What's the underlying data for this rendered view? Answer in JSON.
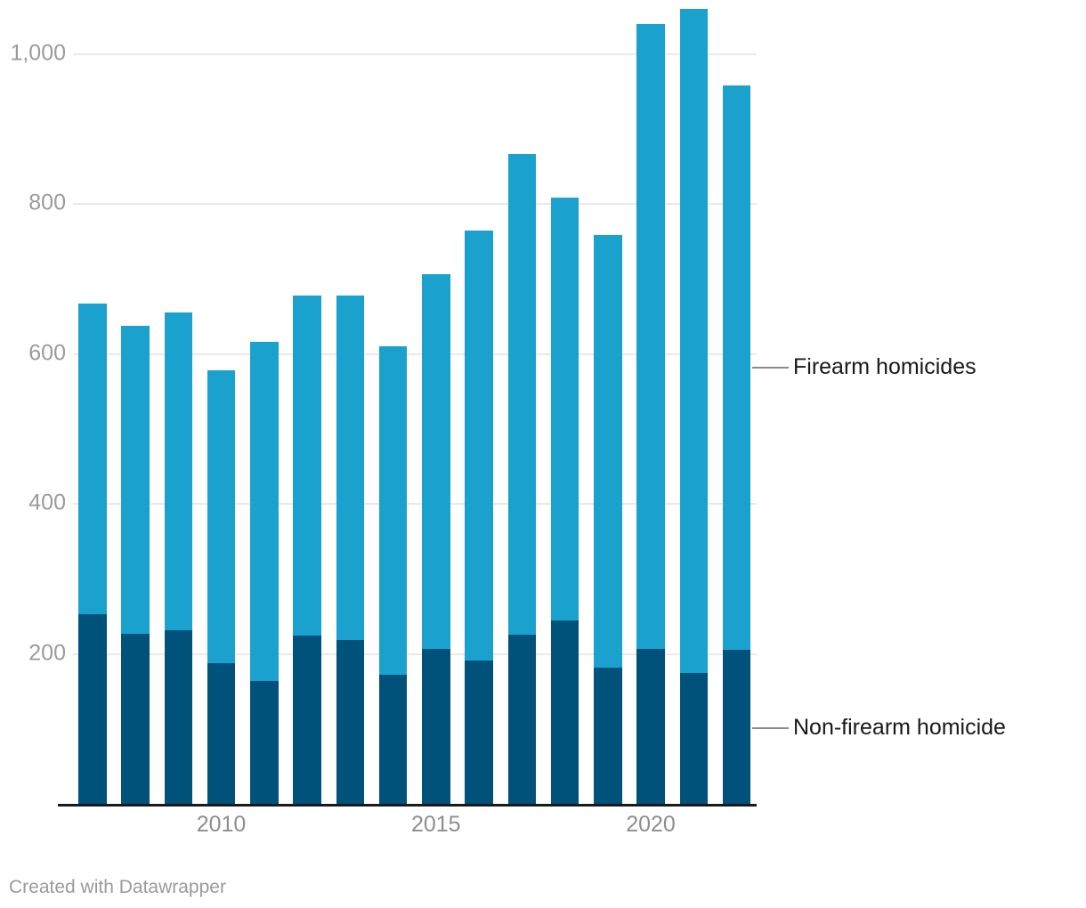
{
  "chart_data": {
    "type": "bar",
    "stacked": true,
    "orientation": "vertical",
    "categories": [
      2007,
      2008,
      2009,
      2010,
      2011,
      2012,
      2013,
      2014,
      2015,
      2016,
      2017,
      2018,
      2019,
      2020,
      2021,
      2022
    ],
    "series": [
      {
        "name": "Non-firearm homicide",
        "color": "#00527a",
        "values": [
          253,
          227,
          232,
          188,
          164,
          224,
          218,
          172,
          206,
          191,
          226,
          244,
          182,
          206,
          174,
          205
        ]
      },
      {
        "name": "Firearm homicides",
        "color": "#1aa1ce",
        "values": [
          414,
          410,
          423,
          390,
          452,
          454,
          460,
          438,
          500,
          573,
          640,
          564,
          576,
          834,
          886,
          753
        ]
      }
    ],
    "totals": [
      667,
      637,
      655,
      578,
      616,
      678,
      678,
      610,
      706,
      764,
      866,
      808,
      758,
      1040,
      1060,
      958
    ],
    "ylim": [
      0,
      1070
    ],
    "yticks": [
      200,
      400,
      600,
      800,
      1000
    ],
    "ytick_labels": [
      "200",
      "400",
      "600",
      "800",
      "1,000"
    ],
    "xticks": [
      {
        "index": 3,
        "label": "2010"
      },
      {
        "index": 8,
        "label": "2015"
      },
      {
        "index": 13,
        "label": "2020"
      }
    ],
    "grid": "horizontal",
    "legend_position": "right",
    "legend": [
      {
        "series": "Firearm homicides",
        "label": "Firearm homicides"
      },
      {
        "series": "Non-firearm homicide",
        "label": "Non-firearm homicide"
      }
    ]
  },
  "colors": {
    "firearm": "#1aa1ce",
    "non_firearm": "#00527a",
    "gridline": "#e9e9e9",
    "axis_line": "#1a1a1a",
    "y_tick_text": "#9b9b9b",
    "x_tick_text": "#8e8e8e",
    "legend_text": "#191919",
    "legend_line": "#8c8c8c",
    "credit_text": "#9b9b9b"
  },
  "footer": {
    "credit": "Created with Datawrapper"
  }
}
